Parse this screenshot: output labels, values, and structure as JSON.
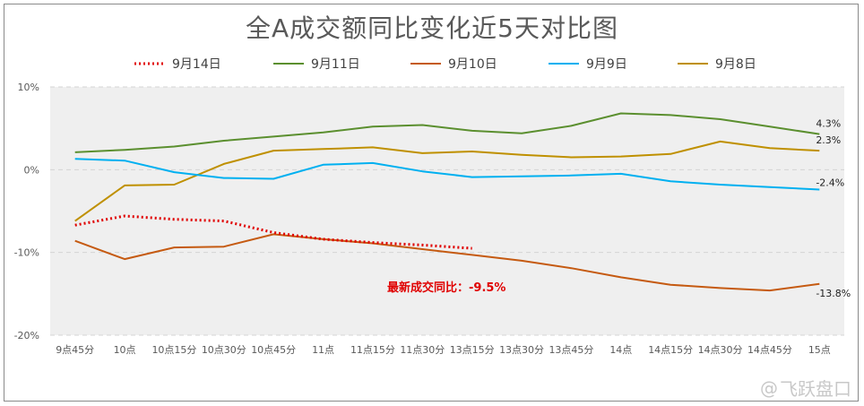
{
  "chart_data": {
    "type": "line",
    "title": "全A成交额同比变化近5天对比图",
    "categories": [
      "9点45分",
      "10点",
      "10点15分",
      "10点30分",
      "10点45分",
      "11点",
      "11点15分",
      "11点30分",
      "13点15分",
      "13点30分",
      "13点45分",
      "14点",
      "14点15分",
      "14点30分",
      "14点45分",
      "15点"
    ],
    "ylim": [
      -20,
      10
    ],
    "yticks": [
      "10%",
      "0%",
      "-10%",
      "-20%"
    ],
    "ytick_values": [
      10,
      0,
      -10,
      -20
    ],
    "grid": true,
    "legend_position": "top",
    "series": [
      {
        "name": "9月14日",
        "color": "#e00000",
        "style": "dotted",
        "values": [
          -6.7,
          -5.6,
          -6.0,
          -6.2,
          -7.6,
          -8.4,
          -8.8,
          -9.1,
          -9.5,
          null,
          null,
          null,
          null,
          null,
          null,
          null
        ]
      },
      {
        "name": "9月11日",
        "color": "#5b8f2f",
        "style": "solid",
        "values": [
          2.1,
          2.4,
          2.8,
          3.5,
          4.0,
          4.5,
          5.2,
          5.4,
          4.7,
          4.4,
          5.3,
          6.8,
          6.6,
          6.1,
          5.2,
          4.3
        ]
      },
      {
        "name": "9月10日",
        "color": "#c55a11",
        "style": "solid",
        "values": [
          -8.6,
          -10.8,
          -9.4,
          -9.3,
          -7.8,
          -8.4,
          -8.9,
          -9.6,
          -10.3,
          -11.0,
          -11.9,
          -13.0,
          -13.9,
          -14.3,
          -14.6,
          -13.8
        ]
      },
      {
        "name": "9月9日",
        "color": "#00b0f0",
        "style": "solid",
        "values": [
          1.3,
          1.1,
          -0.3,
          -1.0,
          -1.1,
          0.6,
          0.8,
          -0.2,
          -0.9,
          -0.8,
          -0.7,
          -0.5,
          -1.4,
          -1.8,
          -2.1,
          -2.4
        ]
      },
      {
        "name": "9月8日",
        "color": "#bf9000",
        "style": "solid",
        "values": [
          -6.2,
          -1.9,
          -1.8,
          0.7,
          2.3,
          2.5,
          2.7,
          2.0,
          2.2,
          1.8,
          1.5,
          1.6,
          1.9,
          3.4,
          2.6,
          2.3
        ]
      }
    ],
    "end_labels": [
      {
        "text": "4.3%",
        "value": 4.3
      },
      {
        "text": "2.3%",
        "value": 2.3
      },
      {
        "text": "-2.4%",
        "value": -2.4
      },
      {
        "text": "-13.8%",
        "value": -13.8
      }
    ],
    "annotation": {
      "text": "最新成交同比：-9.5%",
      "color": "#e00000"
    }
  },
  "watermark": {
    "text": "飞跃盘口",
    "prefix": "@"
  }
}
